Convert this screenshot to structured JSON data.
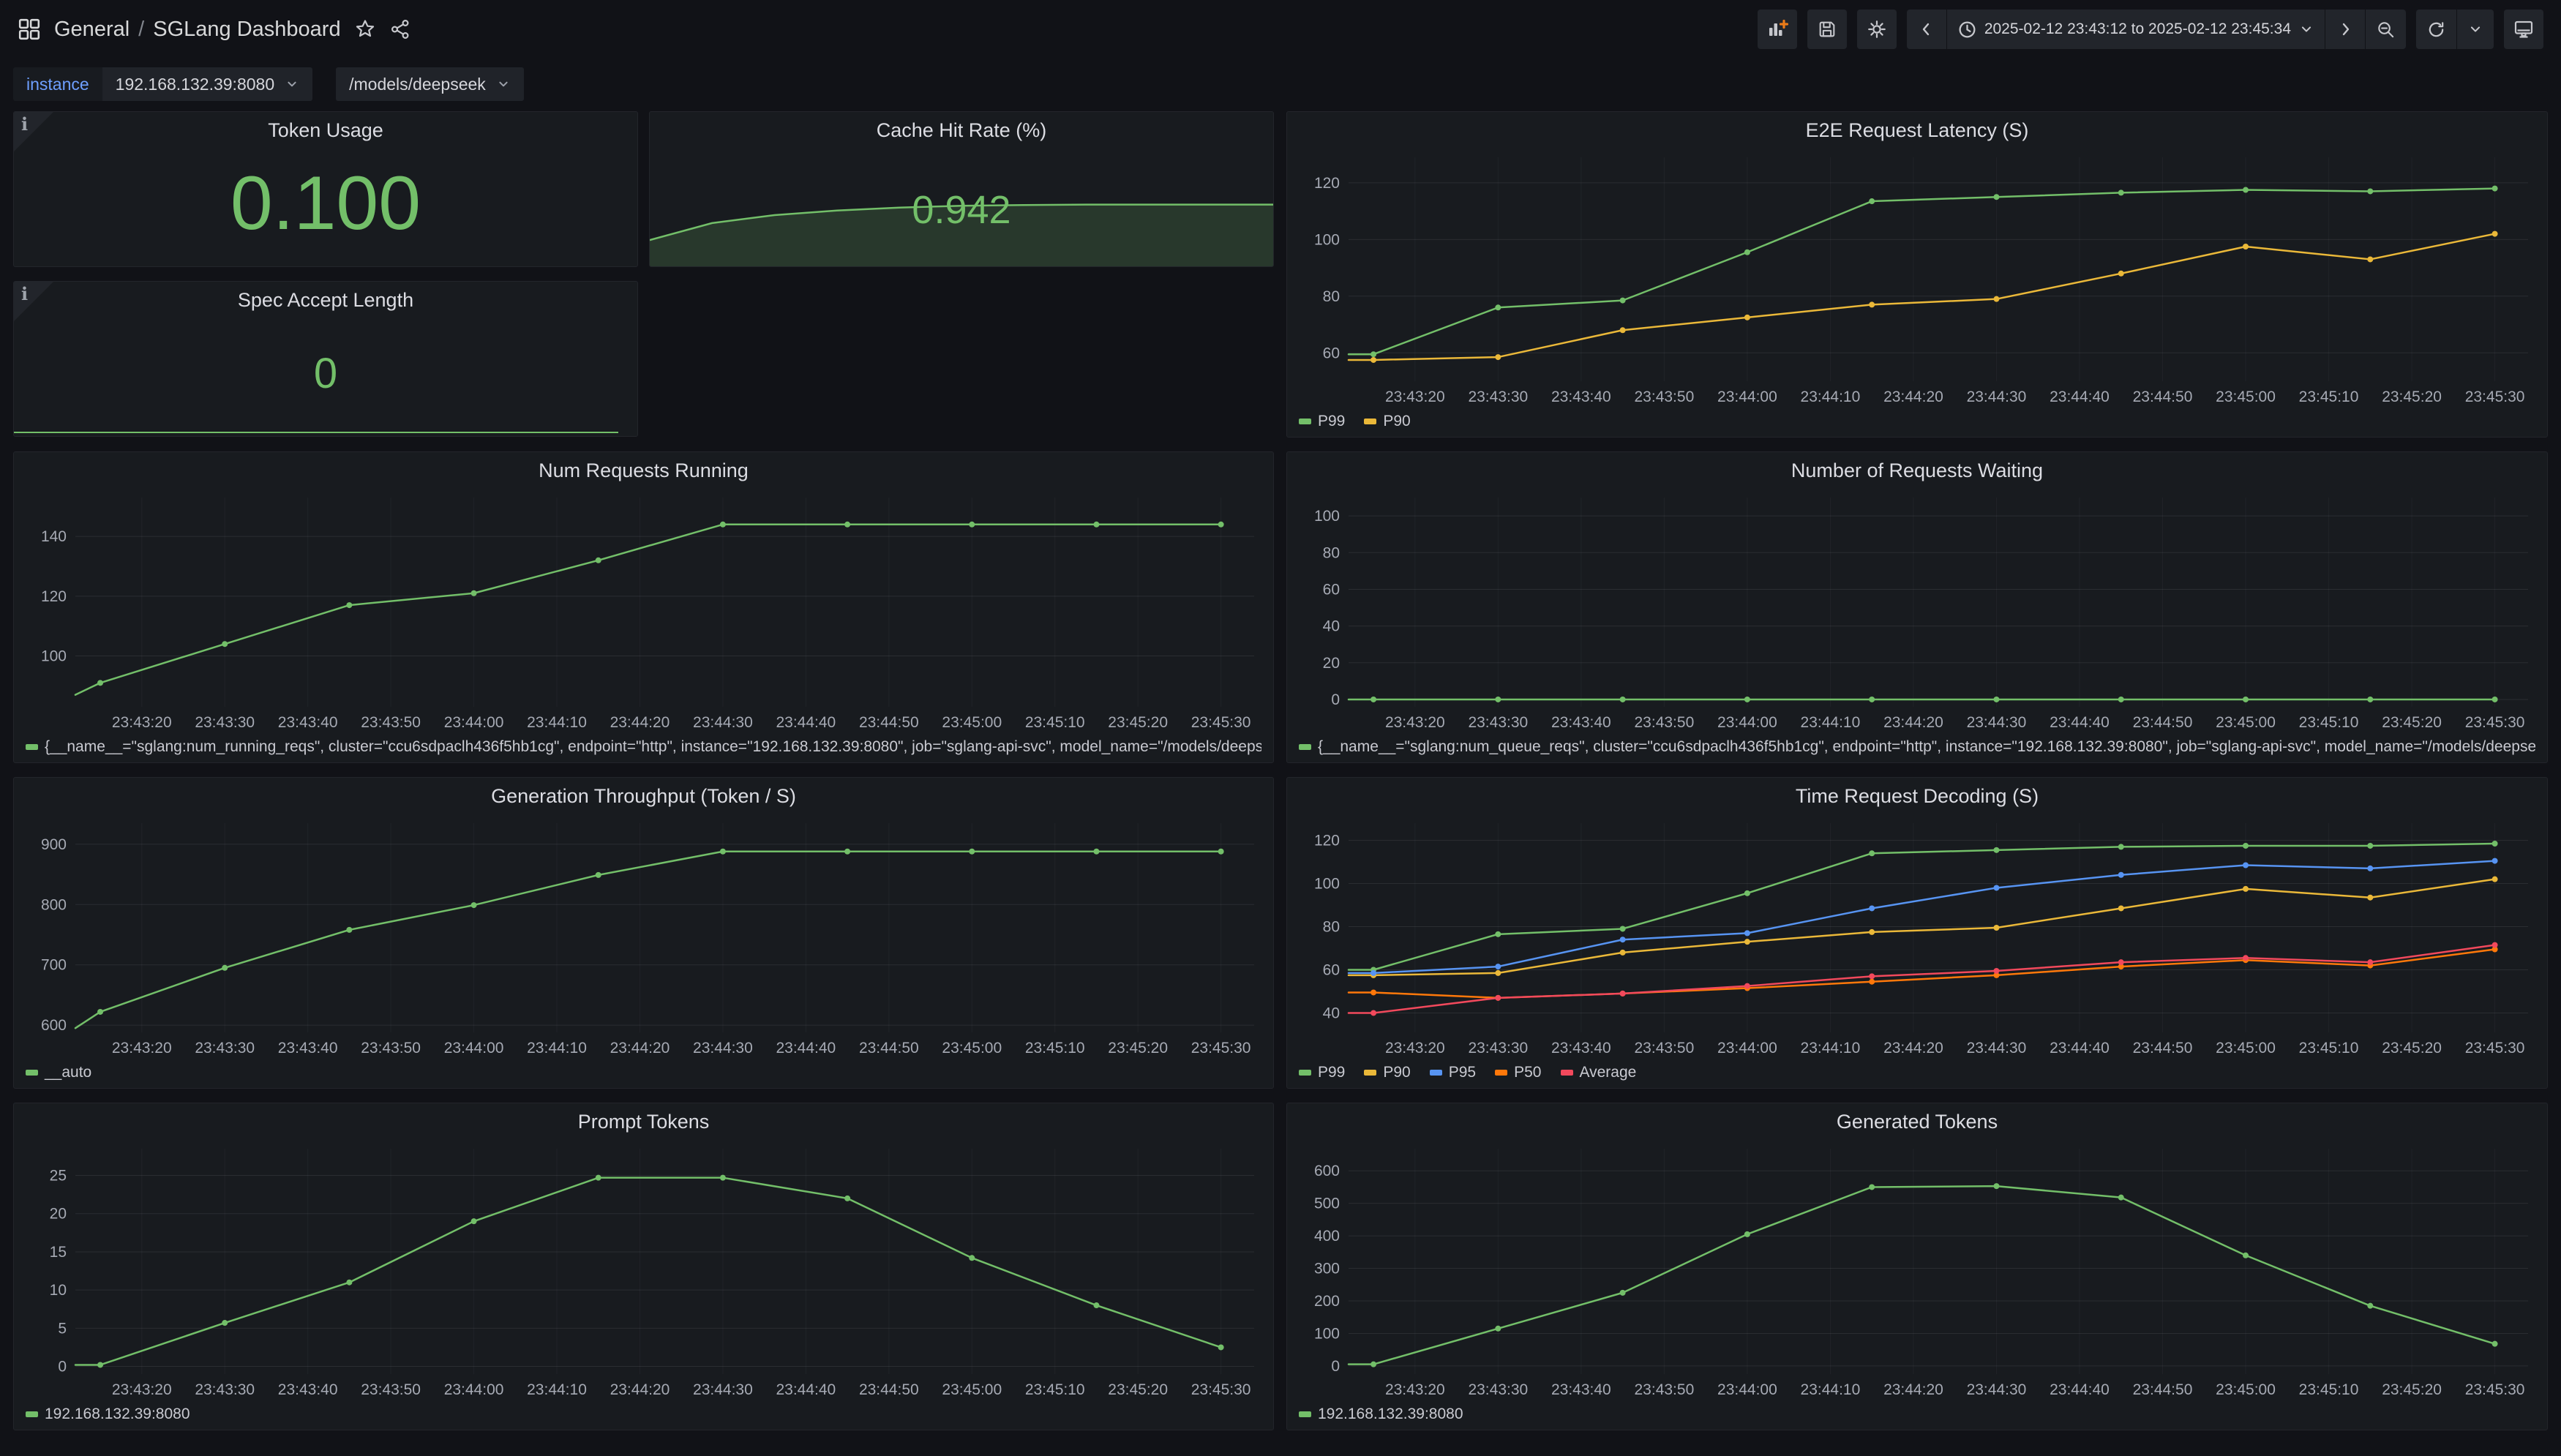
{
  "nav": {
    "folder": "General",
    "separator": "/",
    "name": "SGLang Dashboard",
    "time_range": "2025-02-12 23:43:12 to 2025-02-12 23:45:34"
  },
  "variables": {
    "label": "instance",
    "instance_value": "192.168.132.39:8080",
    "model_value": "/models/deepseek"
  },
  "icons": {
    "nav_left": [
      "apps-grid-icon",
      "star-icon",
      "share-icon"
    ],
    "nav_right": [
      "add-panel-icon",
      "save-icon",
      "gear-icon",
      "chevron-left-icon",
      "clock-icon",
      "chevron-down-icon",
      "chevron-right-icon",
      "zoom-out-icon",
      "refresh-icon",
      "monitor-icon"
    ],
    "panel_corner": "info-icon"
  },
  "colors": {
    "green": "#73bf69",
    "yellow": "#eab839",
    "blue": "#5794f2",
    "orange": "#ff780a",
    "red": "#f2495c",
    "accent_plus": "#eb7b18",
    "panel_bg": "#181b1f",
    "page_bg": "#111217"
  },
  "stats": {
    "token_usage": {
      "title": "Token Usage",
      "value": "0.100"
    },
    "cache_hit": {
      "title": "Cache Hit Rate (%)",
      "value": "0.942",
      "spark_values": [
        0.8,
        0.868,
        0.9,
        0.918,
        0.93,
        0.937,
        0.94,
        0.942,
        0.942,
        0.942,
        0.942
      ]
    },
    "spec_accept": {
      "title": "Spec Accept Length",
      "value": "0",
      "spark_values": [
        0,
        0
      ]
    }
  },
  "x_axis": {
    "labels": [
      "23:43:20",
      "23:43:30",
      "23:43:40",
      "23:43:50",
      "23:44:00",
      "23:44:10",
      "23:44:20",
      "23:44:30",
      "23:44:40",
      "23:44:50",
      "23:45:00",
      "23:45:10",
      "23:45:20",
      "23:45:30"
    ],
    "tick_offsets_s": [
      8,
      18,
      28,
      38,
      48,
      58,
      68,
      78,
      88,
      98,
      108,
      118,
      128,
      138
    ],
    "point_times": [
      "23:43:15",
      "23:43:30",
      "23:43:45",
      "23:44:00",
      "23:44:15",
      "23:44:30",
      "23:44:45",
      "23:45:00",
      "23:45:15",
      "23:45:30"
    ],
    "point_offsets_s": [
      3,
      18,
      33,
      48,
      63,
      78,
      93,
      108,
      123,
      138
    ],
    "range_s": 142
  },
  "chart_data": [
    {
      "id": "e2e",
      "type": "line",
      "title": "E2E Request Latency (S)",
      "yticks": [
        60,
        80,
        100,
        120
      ],
      "ylim": [
        50,
        129
      ],
      "series": [
        {
          "name": "P99",
          "color": "#73bf69",
          "values": [
            59.5,
            76,
            78.5,
            95.5,
            113.5,
            115,
            116.5,
            117.5,
            117,
            118
          ]
        },
        {
          "name": "P90",
          "color": "#eab839",
          "values": [
            57.5,
            58.5,
            68,
            72.5,
            77,
            79,
            88,
            97.5,
            93,
            102
          ]
        }
      ]
    },
    {
      "id": "running",
      "type": "line",
      "title": "Num Requests Running",
      "yticks": [
        100,
        120,
        140
      ],
      "ylim": [
        83,
        153
      ],
      "series": [
        {
          "name": "{__name__=\"sglang:num_running_reqs\", cluster=\"ccu6sdpaclh436f5hb1cg\", endpoint=\"http\", instance=\"192.168.132.39:8080\", job=\"sglang-api-svc\", model_name=\"/models/deepseek\", namespace=\"defau",
          "color": "#73bf69",
          "edge_value": 87,
          "values": [
            91,
            104,
            117,
            121,
            132,
            144,
            144,
            144,
            144,
            144
          ]
        }
      ]
    },
    {
      "id": "waiting",
      "type": "line",
      "title": "Number of Requests Waiting",
      "yticks": [
        0,
        20,
        40,
        60,
        80,
        100
      ],
      "ylim": [
        -4,
        110
      ],
      "series": [
        {
          "name": "{__name__=\"sglang:num_queue_reqs\", cluster=\"ccu6sdpaclh436f5hb1cg\", endpoint=\"http\", instance=\"192.168.132.39:8080\", job=\"sglang-api-svc\", model_name=\"/models/deepseek\", namespace=\"default",
          "color": "#73bf69",
          "values": [
            0,
            0,
            0,
            0,
            0,
            0,
            0,
            0,
            0,
            0
          ]
        }
      ]
    },
    {
      "id": "gen",
      "type": "line",
      "title": "Generation Throughput (Token / S)",
      "yticks": [
        600,
        700,
        800,
        900
      ],
      "ylim": [
        588,
        935
      ],
      "series": [
        {
          "name": "__auto",
          "color": "#73bf69",
          "edge_value": 595,
          "values": [
            622,
            695,
            758,
            799,
            849,
            888,
            888,
            888,
            888,
            888
          ]
        }
      ]
    },
    {
      "id": "decode",
      "type": "line",
      "title": "Time Request Decoding (S)",
      "yticks": [
        40,
        60,
        80,
        100,
        120
      ],
      "ylim": [
        31,
        128
      ],
      "series": [
        {
          "name": "P99",
          "color": "#73bf69",
          "values": [
            60,
            76.5,
            79,
            95.5,
            114,
            115.5,
            117,
            117.5,
            117.5,
            118.5
          ]
        },
        {
          "name": "P90",
          "color": "#eab839",
          "values": [
            57.5,
            58.5,
            68,
            73,
            77.5,
            79.5,
            88.5,
            97.5,
            93.5,
            102
          ]
        },
        {
          "name": "P95",
          "color": "#5794f2",
          "values": [
            58.5,
            61.5,
            74,
            77,
            88.5,
            98,
            104,
            108.5,
            107,
            110.5
          ]
        },
        {
          "name": "P50",
          "color": "#ff780a",
          "values": [
            49.5,
            47,
            49,
            51.5,
            54.5,
            57.5,
            61.5,
            64.5,
            62,
            69.5
          ]
        },
        {
          "name": "Average",
          "color": "#f2495c",
          "values": [
            40,
            47,
            49,
            52.5,
            57,
            59.5,
            63.5,
            65.5,
            63.5,
            71.5
          ]
        }
      ]
    },
    {
      "id": "prompt",
      "type": "line",
      "title": "Prompt Tokens",
      "yticks": [
        0,
        5,
        10,
        15,
        20,
        25
      ],
      "ylim": [
        -1,
        28.5
      ],
      "series": [
        {
          "name": "192.168.132.39:8080",
          "color": "#73bf69",
          "values": [
            0.2,
            5.7,
            11,
            19,
            24.7,
            24.7,
            22,
            14.2,
            8,
            2.5
          ]
        }
      ]
    },
    {
      "id": "generated",
      "type": "line",
      "title": "Generated Tokens",
      "yticks": [
        0,
        100,
        200,
        300,
        400,
        500,
        600
      ],
      "ylim": [
        -25,
        668
      ],
      "series": [
        {
          "name": "192.168.132.39:8080",
          "color": "#73bf69",
          "values": [
            5,
            115,
            225,
            405,
            550,
            553,
            518,
            340,
            185,
            68
          ]
        }
      ]
    }
  ]
}
